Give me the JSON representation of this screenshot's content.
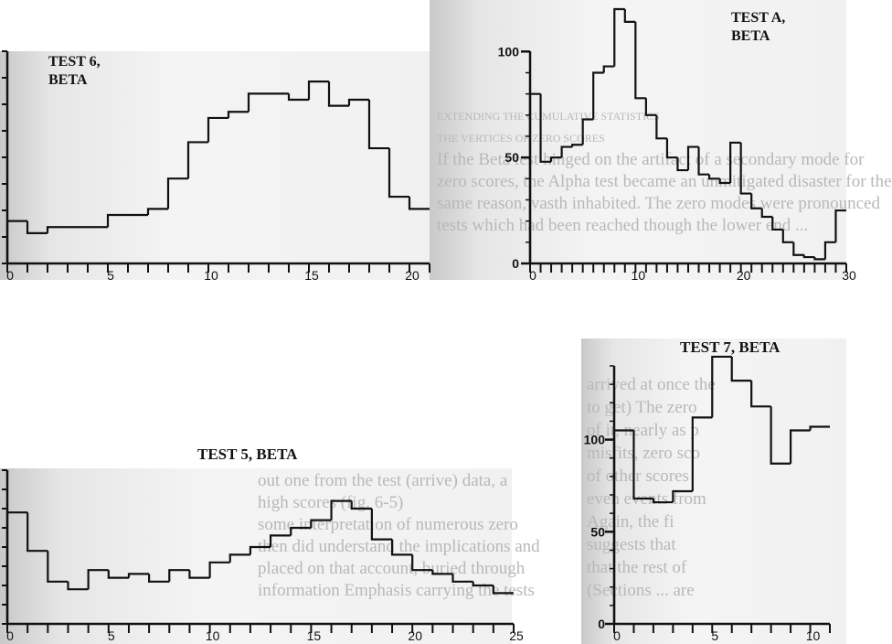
{
  "background_text": {
    "top_right": [
      "EXTENDING THE CUMULATIVE STATISTICS",
      "THE VERTICES OF ZERO SCORES",
      "If the Beta test hinged on the artifact of a secondary mode for",
      "zero scores, the Alpha test became an unmitigated disaster for the",
      "same reason, vasth inhabited. The zero modes were pronounced",
      "tests which had been reached though the lower end ..."
    ],
    "bottom_left": [
      "out one from the test (arrive) data, a",
      "high scores (fig. 6-5)",
      "some interpretation of numerous zero",
      "then did understand the implications and",
      "placed on that account, buried through",
      "information Emphasis carrying the tests"
    ],
    "bottom_right": [
      "arrived at once the ",
      "to get) The zero ",
      "of it, nearly as p",
      "misfits, zero sco",
      "of other scores",
      "even events from",
      "Again, the fi",
      "suggests that",
      "that the rest of",
      "(Sections ... are"
    ]
  },
  "chart_data": [
    {
      "type": "bar",
      "style": "step-histogram",
      "title_line1": "TEST 6,",
      "title_line2": "BETA",
      "x_start": 0,
      "bin_width": 1,
      "values": [
        7,
        5,
        6,
        6,
        6,
        8,
        8,
        9,
        14,
        20,
        24,
        25,
        28,
        28,
        27,
        30,
        26,
        27,
        19,
        11,
        9
      ],
      "xlim": [
        0,
        21
      ],
      "ylim": [
        0,
        35
      ],
      "x_ticks": [
        0,
        5,
        10,
        15,
        20
      ],
      "x_tick_labels": [
        "0",
        "5",
        "10",
        "15",
        "20"
      ],
      "y_ticks": [],
      "y_tick_labels": []
    },
    {
      "type": "bar",
      "style": "step-histogram",
      "title_line1": "TEST A,",
      "title_line2": "BETA",
      "x_start": 0,
      "bin_width": 1,
      "values": [
        80,
        48,
        50,
        55,
        56,
        68,
        90,
        93,
        120,
        114,
        78,
        70,
        59,
        50,
        44,
        55,
        42,
        40,
        38,
        57,
        33,
        26,
        22,
        16,
        10,
        4,
        3,
        2,
        10,
        25
      ],
      "xlim": [
        0,
        30
      ],
      "ylim": [
        0,
        120
      ],
      "x_ticks": [
        0,
        10,
        20,
        30
      ],
      "x_tick_labels": [
        "0",
        "10",
        "20",
        "30"
      ],
      "y_ticks": [
        0,
        50,
        100
      ],
      "y_tick_labels": [
        "0",
        "50",
        "100"
      ]
    },
    {
      "type": "bar",
      "style": "step-histogram",
      "title": "TEST 5, BETA",
      "x_start": 0,
      "bin_width": 1,
      "values": [
        29,
        19,
        11,
        9,
        14,
        12,
        13,
        11,
        14,
        12,
        16,
        18,
        20,
        23,
        25,
        27,
        32,
        30,
        22,
        18,
        14,
        13,
        11,
        10,
        8
      ],
      "xlim": [
        0,
        25
      ],
      "ylim": [
        0,
        40
      ],
      "x_ticks": [
        0,
        5,
        10,
        15,
        20,
        25
      ],
      "x_tick_labels": [
        "0",
        "5",
        "10",
        "15",
        "20",
        "25"
      ],
      "y_ticks": [],
      "y_tick_labels": []
    },
    {
      "type": "bar",
      "style": "step-histogram",
      "title": "TEST 7, BETA",
      "x_start": 0,
      "bin_width": 1,
      "values": [
        105,
        68,
        66,
        72,
        112,
        145,
        132,
        118,
        87,
        105,
        107
      ],
      "xlim": [
        0,
        11
      ],
      "ylim": [
        0,
        140
      ],
      "x_ticks": [
        0,
        5,
        10
      ],
      "x_tick_labels": [
        "0",
        "5",
        "10"
      ],
      "y_ticks": [
        0,
        50,
        100
      ],
      "y_tick_labels": [
        "0",
        "50",
        "100"
      ]
    }
  ]
}
